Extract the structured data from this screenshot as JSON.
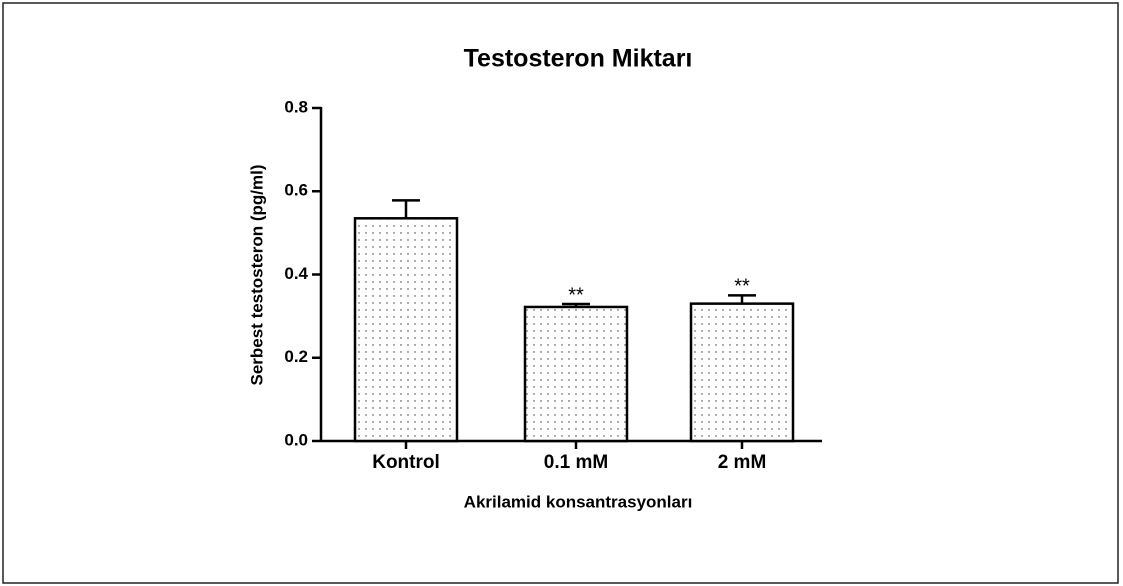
{
  "chart_data": {
    "type": "bar",
    "title": "Testosteron Miktarı",
    "y_label": "Serbest testosteron (pg/ml)",
    "x_label": "Akrilamid konsantrasyonları",
    "categories": [
      "Kontrol",
      "0.1 mM",
      "2 mM"
    ],
    "values": [
      0.535,
      0.322,
      0.33
    ],
    "errors": [
      0.043,
      0.007,
      0.02
    ],
    "annotations": [
      null,
      "**",
      "**"
    ],
    "color": "#ffffff",
    "ylim": [
      0,
      0.8
    ],
    "yticks": [
      {
        "value": 0,
        "label": "0.0"
      },
      {
        "value": 0.2,
        "label": "0.2"
      },
      {
        "value": 0.4,
        "label": "0.4"
      },
      {
        "value": 0.6,
        "label": "0.6"
      },
      {
        "value": 0.8,
        "label": "0.8"
      }
    ],
    "grid": false
  }
}
